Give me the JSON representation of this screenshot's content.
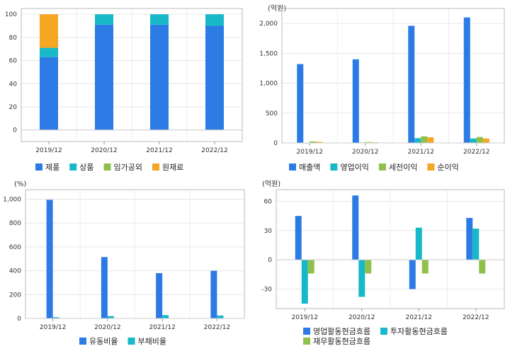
{
  "chart_data": [
    {
      "type": "bar",
      "stacked": true,
      "unit": "",
      "categories": [
        "2019/12",
        "2020/12",
        "2021/12",
        "2022/12"
      ],
      "ylim": [
        -10,
        105
      ],
      "yticks": [
        0,
        20,
        40,
        60,
        80,
        100
      ],
      "grid": true,
      "legend_position": "bottom",
      "series": [
        {
          "name": "제품",
          "color": "#2c7be5",
          "values": [
            63,
            91,
            91,
            90
          ]
        },
        {
          "name": "상품",
          "color": "#17b9c9",
          "values": [
            8,
            9,
            9,
            10
          ]
        },
        {
          "name": "임가공외",
          "color": "#8fc04a",
          "values": [
            0,
            0,
            0,
            0
          ]
        },
        {
          "name": "원재료",
          "color": "#f5a623",
          "values": [
            29,
            0,
            0,
            0
          ]
        }
      ]
    },
    {
      "type": "bar",
      "unit": "(억원)",
      "categories": [
        "2019/12",
        "2020/12",
        "2021/12",
        "2022/12"
      ],
      "ylim": [
        0,
        2250
      ],
      "yticks": [
        0,
        500,
        1000,
        1500,
        2000
      ],
      "ytick_labels": [
        "0",
        "500",
        "1,000",
        "1,500",
        "2,000"
      ],
      "grid": true,
      "legend_position": "bottom",
      "series": [
        {
          "name": "매출액",
          "color": "#2c7be5",
          "values": [
            1320,
            1400,
            1960,
            2100
          ]
        },
        {
          "name": "영업이익",
          "color": "#17b9c9",
          "values": [
            5,
            8,
            80,
            75
          ]
        },
        {
          "name": "세전이익",
          "color": "#8fc04a",
          "values": [
            25,
            15,
            110,
            100
          ]
        },
        {
          "name": "순이익",
          "color": "#f5a623",
          "values": [
            18,
            12,
            95,
            75
          ]
        }
      ]
    },
    {
      "type": "bar",
      "unit": "(%)",
      "categories": [
        "2019/12",
        "2020/12",
        "2021/12",
        "2022/12"
      ],
      "ylim": [
        0,
        1080
      ],
      "yticks": [
        0,
        200,
        400,
        600,
        800,
        1000
      ],
      "ytick_labels": [
        "0",
        "200",
        "400",
        "600",
        "800",
        "1,000"
      ],
      "grid": true,
      "legend_position": "bottom",
      "series": [
        {
          "name": "유동비율",
          "color": "#2c7be5",
          "values": [
            995,
            515,
            380,
            400
          ]
        },
        {
          "name": "부채비율",
          "color": "#17b9c9",
          "values": [
            10,
            20,
            28,
            25
          ]
        }
      ]
    },
    {
      "type": "bar",
      "unit": "(억원)",
      "categories": [
        "2019/12",
        "2020/12",
        "2021/12",
        "2022/12"
      ],
      "ylim": [
        -50,
        72
      ],
      "yticks": [
        -30,
        0,
        30,
        60
      ],
      "grid": true,
      "legend_position": "bottom",
      "series": [
        {
          "name": "영업활동현금흐름",
          "color": "#2c7be5",
          "values": [
            45,
            66,
            -30,
            43
          ]
        },
        {
          "name": "투자활동현금흐름",
          "color": "#17b9c9",
          "values": [
            -45,
            -38,
            33,
            32
          ]
        },
        {
          "name": "재무활동현금흐름",
          "color": "#8fc04a",
          "values": [
            -14,
            -14,
            -14,
            -14
          ]
        }
      ]
    }
  ]
}
